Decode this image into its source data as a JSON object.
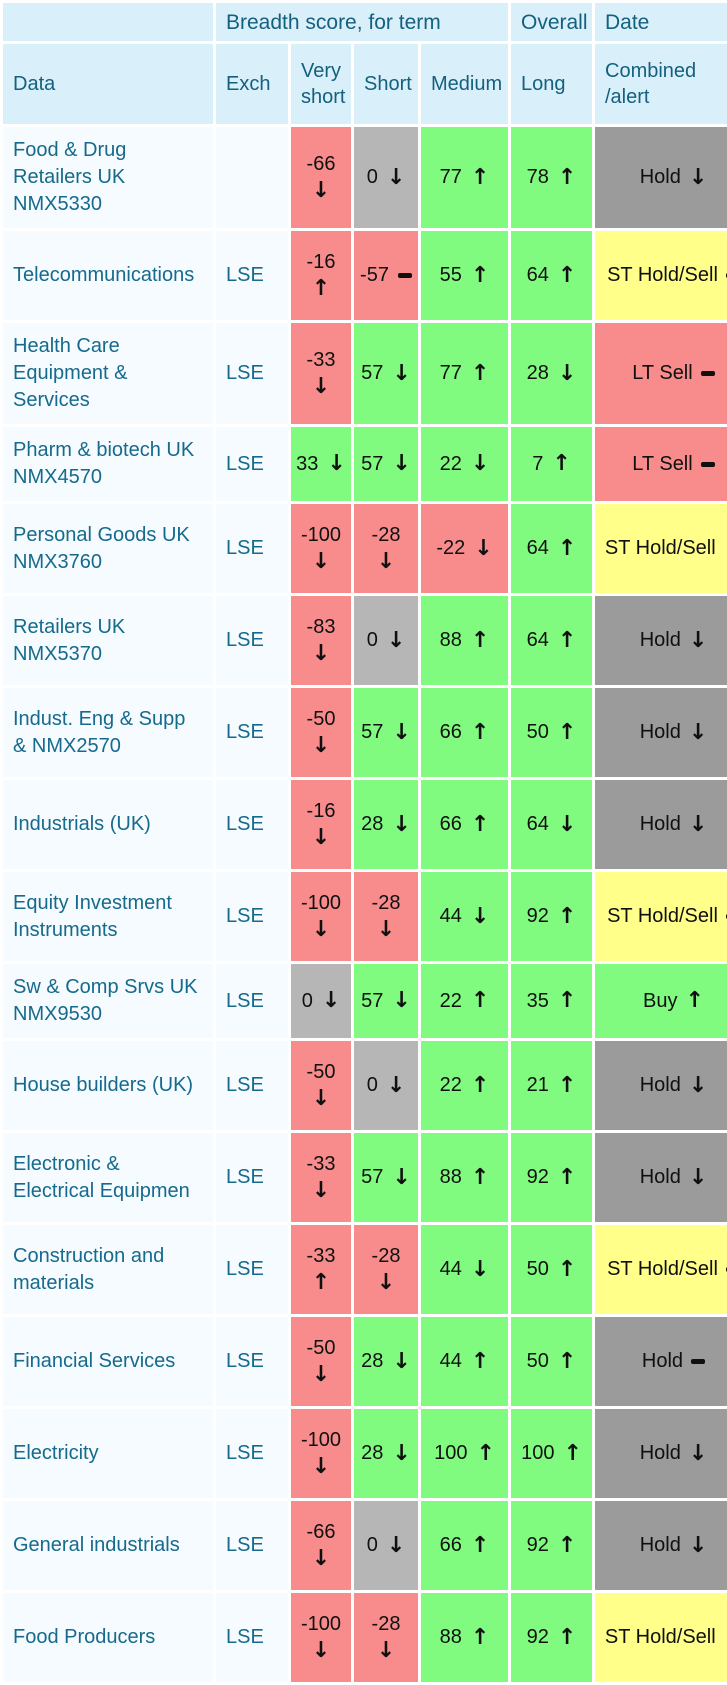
{
  "palette": {
    "header_bg": "#d9f0fa",
    "row_label_bg": "#f5fbfe",
    "header_text": "#14607f",
    "label_text": "#156a8d",
    "cell_text": "#101010",
    "red": "#f88c8c",
    "green": "#80fb80",
    "gray": "#b6b6b6",
    "dark_gray": "#9b9b9b",
    "yellow": "#ffff8a"
  },
  "header": {
    "group_breadth": "Breadth score, for term",
    "group_overall": "Overall",
    "group_date": "Date",
    "columns": [
      "Data",
      "Exch",
      "Very short",
      "Short",
      "Medium",
      "Long",
      "Combined /alert"
    ],
    "score_keys": [
      "very-short",
      "short",
      "medium",
      "long"
    ]
  },
  "rows": [
    {
      "name": "Food & Drug Retailers UK NMX5330",
      "exch": "",
      "scores": [
        {
          "value": "-66",
          "trend": "down",
          "tone": "red"
        },
        {
          "value": "0",
          "trend": "down",
          "tone": "gray"
        },
        {
          "value": "77",
          "trend": "up",
          "tone": "green"
        },
        {
          "value": "78",
          "trend": "up",
          "tone": "green"
        }
      ],
      "alert": {
        "label": "Hold",
        "trend": "down",
        "tone": "dark_gray"
      }
    },
    {
      "name": "Telecommunications",
      "exch": "LSE",
      "scores": [
        {
          "value": "-16",
          "trend": "up",
          "tone": "red"
        },
        {
          "value": "-57",
          "trend": "flat",
          "tone": "red"
        },
        {
          "value": "55",
          "trend": "up",
          "tone": "green"
        },
        {
          "value": "64",
          "trend": "up",
          "tone": "green"
        }
      ],
      "alert": {
        "label": "ST Hold/Sell",
        "trend": "flat",
        "tone": "yellow"
      }
    },
    {
      "name": "Health Care Equipment & Services",
      "exch": "LSE",
      "scores": [
        {
          "value": "-33",
          "trend": "down",
          "tone": "red"
        },
        {
          "value": "57",
          "trend": "down",
          "tone": "green"
        },
        {
          "value": "77",
          "trend": "up",
          "tone": "green"
        },
        {
          "value": "28",
          "trend": "down",
          "tone": "green"
        }
      ],
      "alert": {
        "label": "LT Sell",
        "trend": "flat",
        "tone": "red"
      }
    },
    {
      "name": "Pharm & biotech UK NMX4570",
      "exch": "LSE",
      "scores": [
        {
          "value": "33",
          "trend": "down",
          "tone": "green"
        },
        {
          "value": "57",
          "trend": "down",
          "tone": "green"
        },
        {
          "value": "22",
          "trend": "down",
          "tone": "green"
        },
        {
          "value": "7",
          "trend": "up",
          "tone": "green"
        }
      ],
      "alert": {
        "label": "LT Sell",
        "trend": "flat",
        "tone": "red"
      }
    },
    {
      "name": "Personal Goods UK NMX3760",
      "exch": "LSE",
      "scores": [
        {
          "value": "-100",
          "trend": "down",
          "tone": "red"
        },
        {
          "value": "-28",
          "trend": "down",
          "tone": "red"
        },
        {
          "value": "-22",
          "trend": "down",
          "tone": "red"
        },
        {
          "value": "64",
          "trend": "up",
          "tone": "green"
        }
      ],
      "alert": {
        "label": "ST Hold/Sell",
        "trend": "down",
        "tone": "yellow"
      }
    },
    {
      "name": "Retailers UK NMX5370",
      "exch": "LSE",
      "scores": [
        {
          "value": "-83",
          "trend": "down",
          "tone": "red"
        },
        {
          "value": "0",
          "trend": "down",
          "tone": "gray"
        },
        {
          "value": "88",
          "trend": "up",
          "tone": "green"
        },
        {
          "value": "64",
          "trend": "up",
          "tone": "green"
        }
      ],
      "alert": {
        "label": "Hold",
        "trend": "down",
        "tone": "dark_gray"
      }
    },
    {
      "name": "Indust. Eng & Supp & NMX2570",
      "exch": "LSE",
      "scores": [
        {
          "value": "-50",
          "trend": "down",
          "tone": "red"
        },
        {
          "value": "57",
          "trend": "down",
          "tone": "green"
        },
        {
          "value": "66",
          "trend": "up",
          "tone": "green"
        },
        {
          "value": "50",
          "trend": "up",
          "tone": "green"
        }
      ],
      "alert": {
        "label": "Hold",
        "trend": "down",
        "tone": "dark_gray"
      }
    },
    {
      "name": "Industrials (UK)",
      "exch": "LSE",
      "scores": [
        {
          "value": "-16",
          "trend": "down",
          "tone": "red"
        },
        {
          "value": "28",
          "trend": "down",
          "tone": "green"
        },
        {
          "value": "66",
          "trend": "up",
          "tone": "green"
        },
        {
          "value": "64",
          "trend": "down",
          "tone": "green"
        }
      ],
      "alert": {
        "label": "Hold",
        "trend": "down",
        "tone": "dark_gray"
      }
    },
    {
      "name": "Equity Investment Instruments",
      "exch": "LSE",
      "scores": [
        {
          "value": "-100",
          "trend": "down",
          "tone": "red"
        },
        {
          "value": "-28",
          "trend": "down",
          "tone": "red"
        },
        {
          "value": "44",
          "trend": "down",
          "tone": "green"
        },
        {
          "value": "92",
          "trend": "up",
          "tone": "green"
        }
      ],
      "alert": {
        "label": "ST Hold/Sell",
        "trend": "flat",
        "tone": "yellow"
      }
    },
    {
      "name": "Sw & Comp Srvs UK NMX9530",
      "exch": "LSE",
      "scores": [
        {
          "value": "0",
          "trend": "down",
          "tone": "gray"
        },
        {
          "value": "57",
          "trend": "down",
          "tone": "green"
        },
        {
          "value": "22",
          "trend": "up",
          "tone": "green"
        },
        {
          "value": "35",
          "trend": "up",
          "tone": "green"
        }
      ],
      "alert": {
        "label": "Buy",
        "trend": "up",
        "tone": "green"
      }
    },
    {
      "name": "House builders (UK)",
      "exch": "LSE",
      "scores": [
        {
          "value": "-50",
          "trend": "down",
          "tone": "red"
        },
        {
          "value": "0",
          "trend": "down",
          "tone": "gray"
        },
        {
          "value": "22",
          "trend": "up",
          "tone": "green"
        },
        {
          "value": "21",
          "trend": "up",
          "tone": "green"
        }
      ],
      "alert": {
        "label": "Hold",
        "trend": "down",
        "tone": "dark_gray"
      }
    },
    {
      "name": "Electronic & Electrical Equipmen",
      "exch": "LSE",
      "scores": [
        {
          "value": "-33",
          "trend": "down",
          "tone": "red"
        },
        {
          "value": "57",
          "trend": "down",
          "tone": "green"
        },
        {
          "value": "88",
          "trend": "up",
          "tone": "green"
        },
        {
          "value": "92",
          "trend": "up",
          "tone": "green"
        }
      ],
      "alert": {
        "label": "Hold",
        "trend": "down",
        "tone": "dark_gray"
      }
    },
    {
      "name": "Construction and materials",
      "exch": "LSE",
      "scores": [
        {
          "value": "-33",
          "trend": "up",
          "tone": "red"
        },
        {
          "value": "-28",
          "trend": "down",
          "tone": "red"
        },
        {
          "value": "44",
          "trend": "down",
          "tone": "green"
        },
        {
          "value": "50",
          "trend": "up",
          "tone": "green"
        }
      ],
      "alert": {
        "label": "ST Hold/Sell",
        "trend": "flat",
        "tone": "yellow"
      }
    },
    {
      "name": "Financial Services",
      "exch": "LSE",
      "scores": [
        {
          "value": "-50",
          "trend": "down",
          "tone": "red"
        },
        {
          "value": "28",
          "trend": "down",
          "tone": "green"
        },
        {
          "value": "44",
          "trend": "up",
          "tone": "green"
        },
        {
          "value": "50",
          "trend": "up",
          "tone": "green"
        }
      ],
      "alert": {
        "label": "Hold",
        "trend": "flat",
        "tone": "dark_gray"
      }
    },
    {
      "name": "Electricity",
      "exch": "LSE",
      "scores": [
        {
          "value": "-100",
          "trend": "down",
          "tone": "red"
        },
        {
          "value": "28",
          "trend": "down",
          "tone": "green"
        },
        {
          "value": "100",
          "trend": "up",
          "tone": "green"
        },
        {
          "value": "100",
          "trend": "up",
          "tone": "green"
        }
      ],
      "alert": {
        "label": "Hold",
        "trend": "down",
        "tone": "dark_gray"
      }
    },
    {
      "name": "General industrials",
      "exch": "LSE",
      "scores": [
        {
          "value": "-66",
          "trend": "down",
          "tone": "red"
        },
        {
          "value": "0",
          "trend": "down",
          "tone": "gray"
        },
        {
          "value": "66",
          "trend": "up",
          "tone": "green"
        },
        {
          "value": "92",
          "trend": "up",
          "tone": "green"
        }
      ],
      "alert": {
        "label": "Hold",
        "trend": "down",
        "tone": "dark_gray"
      }
    },
    {
      "name": "Food Producers",
      "exch": "LSE",
      "scores": [
        {
          "value": "-100",
          "trend": "down",
          "tone": "red"
        },
        {
          "value": "-28",
          "trend": "down",
          "tone": "red"
        },
        {
          "value": "88",
          "trend": "up",
          "tone": "green"
        },
        {
          "value": "92",
          "trend": "up",
          "tone": "green"
        }
      ],
      "alert": {
        "label": "ST Hold/Sell",
        "trend": "down",
        "tone": "yellow"
      }
    }
  ]
}
